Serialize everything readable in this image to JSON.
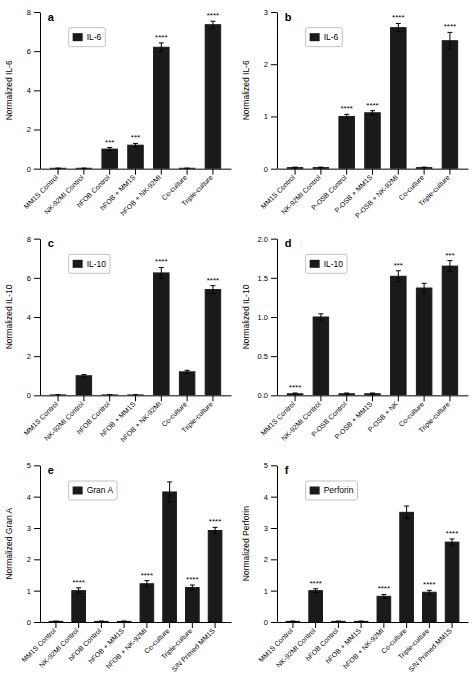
{
  "chart_data": [
    {
      "type": "bar",
      "title": "a",
      "ylabel": "Normalized IL-6",
      "categories": [
        "MM1S Control",
        "NK-92MI Control",
        "hFOB Control",
        "hFOB + MM1S",
        "hFOB + NK-92MI",
        "Co-culture",
        "Triple-culture"
      ],
      "series": [
        {
          "name": "IL-6",
          "color": "#1a1a1a",
          "values": [
            0.02,
            0.02,
            1.0,
            1.2,
            6.2,
            0.02,
            7.35
          ],
          "errors": [
            0.01,
            0.01,
            0.08,
            0.09,
            0.22,
            0.01,
            0.18
          ],
          "significance": [
            null,
            null,
            "***",
            "***",
            "****",
            null,
            "****"
          ]
        }
      ],
      "ylim": [
        0,
        8
      ],
      "yticks": [
        0,
        2,
        4,
        6,
        8
      ],
      "legend": "upper left"
    },
    {
      "type": "bar",
      "title": "b",
      "ylabel": "Normalized IL-6",
      "categories": [
        "MM1S Control",
        "NK-92MI Control",
        "P-OSB Control",
        "P-OSB + MM1S",
        "P-OSB + NK-92MI",
        "Co-culture",
        "Triple-culture"
      ],
      "series": [
        {
          "name": "IL-6",
          "color": "#1a1a1a",
          "values": [
            0.02,
            0.02,
            1.0,
            1.07,
            2.7,
            0.02,
            2.45
          ],
          "errors": [
            0.01,
            0.01,
            0.04,
            0.04,
            0.08,
            0.01,
            0.16
          ],
          "significance": [
            null,
            null,
            "****",
            "****",
            "****",
            null,
            "****"
          ]
        }
      ],
      "ylim": [
        0,
        3
      ],
      "yticks": [
        0,
        1,
        2,
        3
      ],
      "legend": "upper left"
    },
    {
      "type": "bar",
      "title": "c",
      "ylabel": "Normalized IL-10",
      "categories": [
        "MM1S Control",
        "NK-92MI Control",
        "hFOB Control",
        "hFOB + MM1S",
        "hFOB + NK-92MI",
        "Co-culture",
        "Triple-culture"
      ],
      "series": [
        {
          "name": "IL-10",
          "color": "#1a1a1a",
          "values": [
            0.02,
            1.0,
            0.02,
            0.02,
            6.25,
            1.2,
            5.4
          ],
          "errors": [
            0.01,
            0.06,
            0.01,
            0.01,
            0.28,
            0.08,
            0.2
          ],
          "significance": [
            null,
            null,
            null,
            null,
            "****",
            null,
            "****"
          ]
        }
      ],
      "ylim": [
        0,
        8
      ],
      "yticks": [
        0,
        2,
        4,
        6,
        8
      ],
      "legend": "upper left"
    },
    {
      "type": "bar",
      "title": "d",
      "ylabel": "Normalized IL-10",
      "categories": [
        "MM1S Control",
        "NK-92MI Control",
        "P-OSB Control",
        "P-OSB + MM1S",
        "P-OSB + NK",
        "Co-culture",
        "Triple-culture"
      ],
      "series": [
        {
          "name": "IL-10",
          "color": "#1a1a1a",
          "values": [
            0.02,
            1.0,
            0.02,
            0.02,
            1.52,
            1.37,
            1.65
          ],
          "errors": [
            0.01,
            0.04,
            0.01,
            0.01,
            0.07,
            0.06,
            0.07
          ],
          "significance": [
            "****",
            null,
            null,
            null,
            "***",
            null,
            "***"
          ]
        }
      ],
      "ylim": [
        0,
        2.0
      ],
      "yticks": [
        {
          "value": 0.0,
          "label": "0.0"
        },
        0.5,
        {
          "value": 1.0,
          "label": "1.0"
        },
        1.5,
        {
          "value": 2.0,
          "label": "2.0"
        }
      ],
      "legend": "upper left"
    },
    {
      "type": "bar",
      "title": "e",
      "ylabel": "Normalized Gran A",
      "categories": [
        "MM1S Control",
        "NK-92MI Control",
        "hFOB Control",
        "hFOB + MM1S",
        "hFOB + NK-92MI",
        "Co-culture",
        "Triple-culture",
        "S/N Primed MM1S"
      ],
      "series": [
        {
          "name": "Gran A",
          "color": "#1a1a1a",
          "values": [
            0.02,
            1.0,
            0.02,
            0.02,
            1.22,
            4.15,
            1.1,
            2.92
          ],
          "errors": [
            0.01,
            0.09,
            0.01,
            0.01,
            0.1,
            0.32,
            0.08,
            0.1
          ],
          "significance": [
            null,
            "****",
            null,
            null,
            "****",
            null,
            "****",
            "****"
          ]
        }
      ],
      "ylim": [
        0,
        5
      ],
      "yticks": [
        0,
        1,
        2,
        3,
        4,
        5
      ],
      "legend": "upper left"
    },
    {
      "type": "bar",
      "title": "f",
      "ylabel": "Normalized Perforin",
      "categories": [
        "MM1S Control",
        "NK-92MI Control",
        "hFOB Control",
        "hFOB + MM1S",
        "hFOB + NK-92MI",
        "Co-culture",
        "Triple-culture",
        "S/N Primed MM1S"
      ],
      "series": [
        {
          "name": "Perforin",
          "color": "#1a1a1a",
          "values": [
            0.02,
            1.0,
            0.02,
            0.02,
            0.82,
            3.5,
            0.95,
            2.55
          ],
          "errors": [
            0.01,
            0.06,
            0.01,
            0.01,
            0.06,
            0.2,
            0.06,
            0.1
          ],
          "significance": [
            null,
            "****",
            null,
            null,
            "****",
            null,
            "****",
            "****"
          ]
        }
      ],
      "ylim": [
        0,
        5
      ],
      "yticks": [
        0,
        1,
        2,
        3,
        4,
        5
      ],
      "legend": "upper left"
    }
  ]
}
